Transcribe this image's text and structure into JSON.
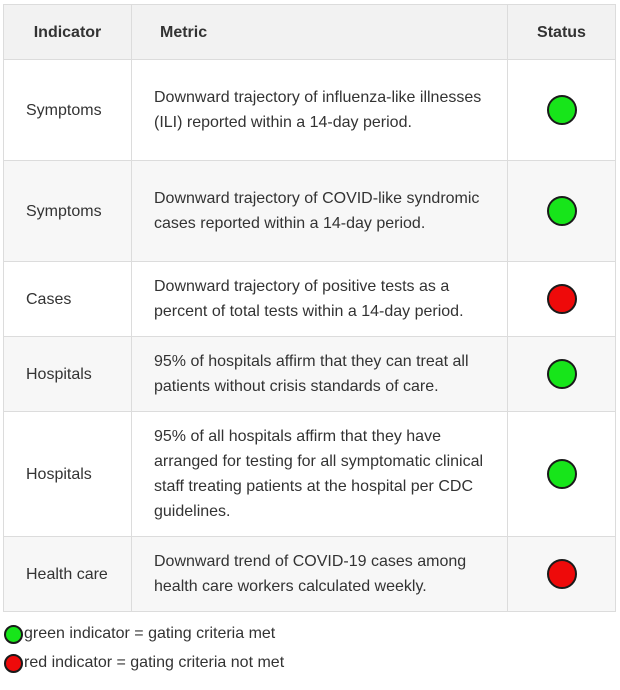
{
  "table": {
    "headers": {
      "indicator": "Indicator",
      "metric": "Metric",
      "status": "Status"
    },
    "rows": [
      {
        "indicator": "Symptoms",
        "metric": "Downward trajectory of influenza-like illnesses (ILI) reported within a 14-day period.",
        "status": "green"
      },
      {
        "indicator": "Symptoms",
        "metric": "Downward trajectory of COVID-like syndromic cases reported within a 14-day period.",
        "status": "green"
      },
      {
        "indicator": "Cases",
        "metric": "Downward trajectory of positive tests as a percent of total tests within a 14-day period.",
        "status": "red"
      },
      {
        "indicator": "Hospitals",
        "metric": "95% of hospitals affirm that they can treat all patients without crisis standards of care.",
        "status": "green"
      },
      {
        "indicator": "Hospitals",
        "metric": "95% of all hospitals affirm that they have arranged for testing for all symptomatic clinical staff treating patients at the hospital per CDC guidelines.",
        "status": "green"
      },
      {
        "indicator": "Health care",
        "metric": "Downward trend of COVID-19 cases among health care workers calculated weekly.",
        "status": "red"
      }
    ]
  },
  "legend": {
    "green": "green indicator = gating criteria met",
    "red": "red indicator = gating criteria not met"
  },
  "colors": {
    "green": "#17e51a",
    "red": "#ee0a0a",
    "header_bg": "#f2f2f2",
    "stripe_bg": "#f7f7f7",
    "border": "#dcdcdc"
  }
}
